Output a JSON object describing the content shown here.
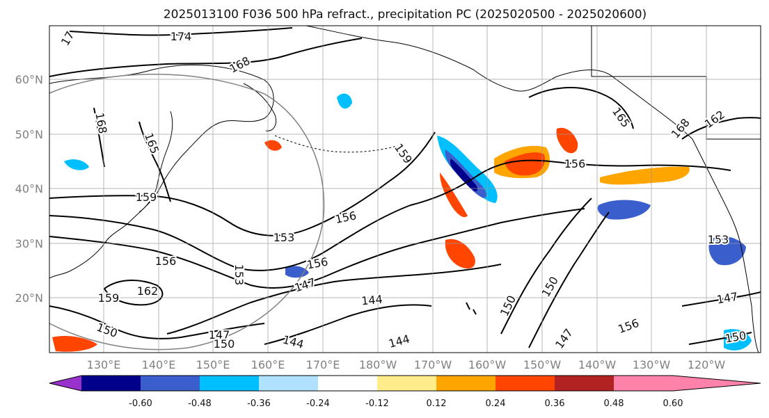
{
  "title": "2025013100 F036 500 hPa refract., precipitation PC (2025020500 - 2025020600)",
  "lat_labels": [
    "60°N",
    "50°N",
    "40°N",
    "30°N",
    "20°N"
  ],
  "lon_labels": [
    "130°E",
    "140°E",
    "150°E",
    "160°E",
    "170°E",
    "180°W",
    "170°W",
    "160°W",
    "150°W",
    "140°W",
    "130°W",
    "120°W"
  ],
  "colorbar": {
    "colors": [
      "#9932cc",
      "#00008b",
      "#3a5fcd",
      "#00bfff",
      "#b0e2ff",
      "#ffffff",
      "#ffec8b",
      "#ffa500",
      "#ff4500",
      "#b22222",
      "#ff82ab"
    ],
    "tick_labels": [
      "-0.60",
      "-0.48",
      "-0.36",
      "-0.24",
      "-0.12",
      "0.12",
      "0.24",
      "0.36",
      "0.48",
      "0.60"
    ]
  },
  "contour_labels": [
    "174",
    "168",
    "17",
    "168",
    "165",
    "159",
    "156",
    "153",
    "156",
    "162",
    "159",
    "150",
    "147",
    "150",
    "144",
    "144",
    "147",
    "156",
    "153",
    "144",
    "159",
    "165",
    "168",
    "162",
    "156",
    "150",
    "150",
    "147",
    "156",
    "153",
    "147",
    "150"
  ]
}
